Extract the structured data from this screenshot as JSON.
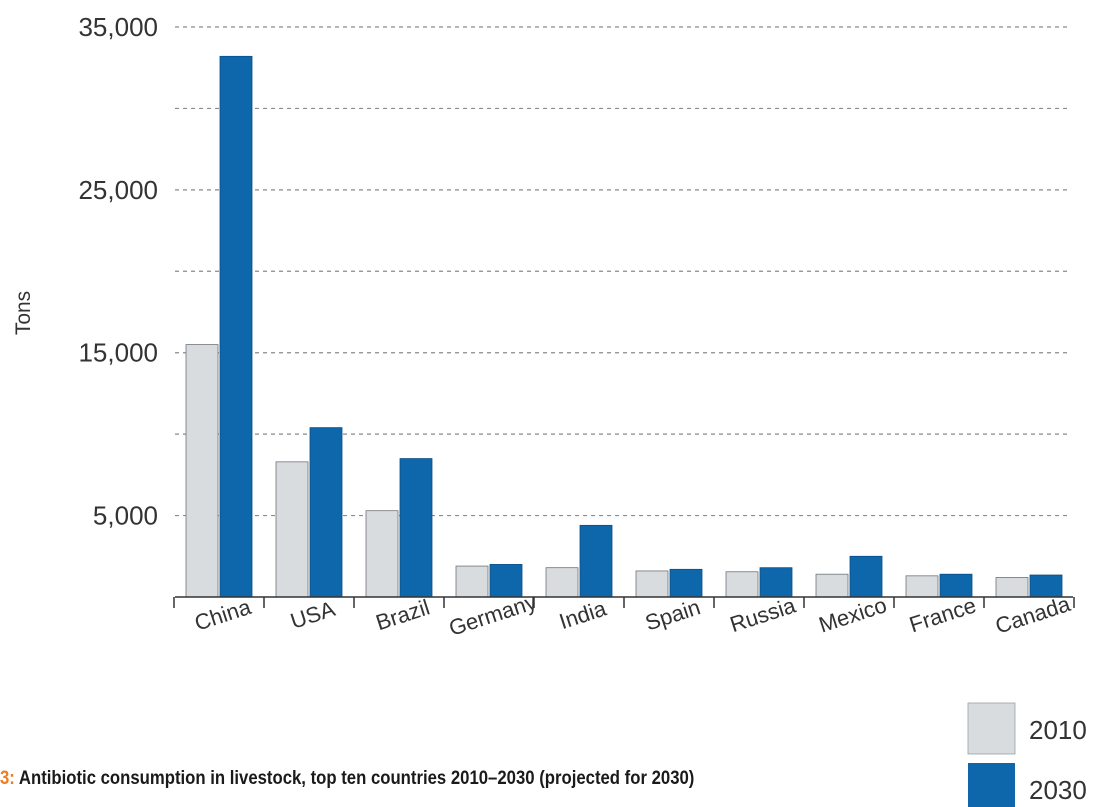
{
  "caption": {
    "prefix": "3:",
    "text": " Antibiotic consumption in livestock, top ten countries 2010–2030 (projected for 2030)"
  },
  "colors": {
    "series_2010": "#d8dcdf",
    "series_2030": "#0f67ab",
    "grid": "#8a8a8a",
    "axis": "#333333"
  },
  "chart_data": {
    "type": "bar",
    "title": "",
    "xlabel": "",
    "ylabel": "Tons",
    "ylim": [
      0,
      35000
    ],
    "yticks": [
      {
        "value": 5000,
        "label": "5,000"
      },
      {
        "value": 15000,
        "label": "15,000"
      },
      {
        "value": 25000,
        "label": "25,000"
      },
      {
        "value": 35000,
        "label": "35,000"
      }
    ],
    "grid_values": [
      5000,
      10000,
      15000,
      20000,
      25000,
      30000,
      35000
    ],
    "grid": true,
    "legend_position": "bottom-right",
    "categories": [
      "China",
      "USA",
      "Brazil",
      "Germany",
      "India",
      "Spain",
      "Russia",
      "Mexico",
      "France",
      "Canada"
    ],
    "series": [
      {
        "name": "2010",
        "values": [
          15500,
          8300,
          5300,
          1900,
          1800,
          1600,
          1550,
          1400,
          1300,
          1200
        ]
      },
      {
        "name": "2030",
        "values": [
          33200,
          10400,
          8500,
          2000,
          4400,
          1700,
          1800,
          2500,
          1400,
          1350
        ]
      }
    ]
  }
}
